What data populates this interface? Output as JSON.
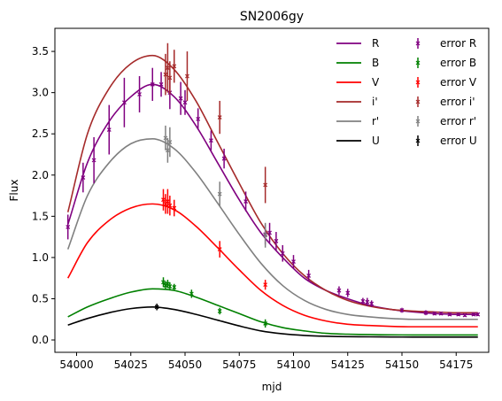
{
  "chart_data": {
    "type": "line",
    "title": "SN2006gy",
    "xlabel": "mjd",
    "ylabel": "Flux",
    "xlim": [
      53990,
      54190
    ],
    "ylim": [
      -0.15,
      3.78
    ],
    "xticks": [
      54000,
      54025,
      54050,
      54075,
      54100,
      54125,
      54150,
      54175
    ],
    "yticks": [
      0.0,
      0.5,
      1.0,
      1.5,
      2.0,
      2.5,
      3.0,
      3.5
    ],
    "grid": false,
    "legend_position": "top-right",
    "series": [
      {
        "name": "R",
        "color": "#800080",
        "x": [
          53996,
          54005,
          54015,
          54025,
          54035,
          54045,
          54055,
          54065,
          54075,
          54085,
          54095,
          54105,
          54115,
          54125,
          54135,
          54145,
          54155,
          54165,
          54175,
          54185
        ],
        "y": [
          1.4,
          2.15,
          2.65,
          2.95,
          3.1,
          2.95,
          2.6,
          2.15,
          1.7,
          1.3,
          1.0,
          0.75,
          0.6,
          0.5,
          0.42,
          0.37,
          0.34,
          0.32,
          0.31,
          0.31
        ]
      },
      {
        "name": "B",
        "color": "#008000",
        "x": [
          53996,
          54005,
          54015,
          54025,
          54035,
          54045,
          54055,
          54065,
          54075,
          54085,
          54095,
          54105,
          54115,
          54125,
          54135,
          54145,
          54155,
          54165,
          54175,
          54185
        ],
        "y": [
          0.28,
          0.4,
          0.5,
          0.58,
          0.62,
          0.6,
          0.52,
          0.42,
          0.32,
          0.22,
          0.15,
          0.11,
          0.08,
          0.07,
          0.065,
          0.062,
          0.06,
          0.06,
          0.06,
          0.06
        ]
      },
      {
        "name": "V",
        "color": "#ff0000",
        "x": [
          53996,
          54005,
          54015,
          54025,
          54035,
          54045,
          54055,
          54065,
          54075,
          54085,
          54095,
          54105,
          54115,
          54125,
          54135,
          54145,
          54155,
          54165,
          54175,
          54185
        ],
        "y": [
          0.75,
          1.18,
          1.45,
          1.6,
          1.65,
          1.58,
          1.38,
          1.12,
          0.85,
          0.6,
          0.42,
          0.3,
          0.23,
          0.19,
          0.175,
          0.165,
          0.16,
          0.16,
          0.16,
          0.16
        ]
      },
      {
        "name": "i'",
        "color": "#a52a2a",
        "x": [
          53996,
          54005,
          54015,
          54025,
          54035,
          54045,
          54055,
          54065,
          54075,
          54085,
          54095,
          54105,
          54115,
          54125,
          54135,
          54145,
          54155,
          54165,
          54175,
          54185
        ],
        "y": [
          1.55,
          2.5,
          3.05,
          3.35,
          3.45,
          3.28,
          2.9,
          2.4,
          1.9,
          1.42,
          1.05,
          0.78,
          0.6,
          0.48,
          0.41,
          0.37,
          0.35,
          0.34,
          0.33,
          0.33
        ]
      },
      {
        "name": "r'",
        "color": "#808080",
        "x": [
          53996,
          54005,
          54015,
          54025,
          54035,
          54045,
          54055,
          54065,
          54075,
          54085,
          54095,
          54105,
          54115,
          54125,
          54135,
          54145,
          54155,
          54165,
          54175,
          54185
        ],
        "y": [
          1.1,
          1.75,
          2.15,
          2.38,
          2.44,
          2.32,
          2.03,
          1.66,
          1.28,
          0.93,
          0.66,
          0.48,
          0.37,
          0.31,
          0.28,
          0.26,
          0.25,
          0.25,
          0.25,
          0.25
        ]
      },
      {
        "name": "U",
        "color": "#000000",
        "x": [
          53996,
          54005,
          54015,
          54025,
          54035,
          54045,
          54055,
          54065,
          54075,
          54085,
          54095,
          54105,
          54115,
          54125,
          54135,
          54145,
          54155,
          54165,
          54175,
          54185
        ],
        "y": [
          0.18,
          0.26,
          0.33,
          0.38,
          0.4,
          0.37,
          0.31,
          0.24,
          0.17,
          0.11,
          0.075,
          0.055,
          0.045,
          0.04,
          0.038,
          0.036,
          0.035,
          0.035,
          0.035,
          0.035
        ]
      }
    ],
    "error_series": [
      {
        "name": "error R",
        "color": "#800080",
        "marker": "x",
        "points": [
          {
            "x": 53996,
            "y": 1.37,
            "err": 0.15
          },
          {
            "x": 54003,
            "y": 1.97,
            "err": 0.18
          },
          {
            "x": 54008,
            "y": 2.18,
            "err": 0.28
          },
          {
            "x": 54015,
            "y": 2.55,
            "err": 0.3
          },
          {
            "x": 54022,
            "y": 2.88,
            "err": 0.3
          },
          {
            "x": 54029,
            "y": 2.98,
            "err": 0.22
          },
          {
            "x": 54035,
            "y": 3.1,
            "err": 0.2
          },
          {
            "x": 54039,
            "y": 3.1,
            "err": 0.15
          },
          {
            "x": 54043,
            "y": 3.0,
            "err": 0.2
          },
          {
            "x": 54048,
            "y": 2.93,
            "err": 0.2
          },
          {
            "x": 54050,
            "y": 2.88,
            "err": 0.15
          },
          {
            "x": 54056,
            "y": 2.68,
            "err": 0.13
          },
          {
            "x": 54062,
            "y": 2.42,
            "err": 0.12
          },
          {
            "x": 54068,
            "y": 2.2,
            "err": 0.12
          },
          {
            "x": 54078,
            "y": 1.68,
            "err": 0.12
          },
          {
            "x": 54087,
            "y": 1.28,
            "err": 0.12
          },
          {
            "x": 54089,
            "y": 1.3,
            "err": 0.12
          },
          {
            "x": 54092,
            "y": 1.2,
            "err": 0.11
          },
          {
            "x": 54095,
            "y": 1.05,
            "err": 0.1
          },
          {
            "x": 54100,
            "y": 0.95,
            "err": 0.08
          },
          {
            "x": 54107,
            "y": 0.78,
            "err": 0.07
          },
          {
            "x": 54121,
            "y": 0.6,
            "err": 0.05
          },
          {
            "x": 54125,
            "y": 0.57,
            "err": 0.05
          },
          {
            "x": 54132,
            "y": 0.47,
            "err": 0.04
          },
          {
            "x": 54134,
            "y": 0.46,
            "err": 0.05
          },
          {
            "x": 54136,
            "y": 0.44,
            "err": 0.04
          },
          {
            "x": 54150,
            "y": 0.36,
            "err": 0.03
          },
          {
            "x": 54161,
            "y": 0.33,
            "err": 0.03
          },
          {
            "x": 54165,
            "y": 0.32,
            "err": 0.02
          },
          {
            "x": 54168,
            "y": 0.32,
            "err": 0.02
          },
          {
            "x": 54172,
            "y": 0.31,
            "err": 0.02
          },
          {
            "x": 54176,
            "y": 0.31,
            "err": 0.02
          },
          {
            "x": 54179,
            "y": 0.3,
            "err": 0.02
          },
          {
            "x": 54183,
            "y": 0.31,
            "err": 0.02
          },
          {
            "x": 54185,
            "y": 0.31,
            "err": 0.02
          }
        ]
      },
      {
        "name": "error B",
        "color": "#008000",
        "marker": "x",
        "points": [
          {
            "x": 54040,
            "y": 0.7,
            "err": 0.06
          },
          {
            "x": 54041,
            "y": 0.66,
            "err": 0.05
          },
          {
            "x": 54042,
            "y": 0.68,
            "err": 0.05
          },
          {
            "x": 54043,
            "y": 0.65,
            "err": 0.05
          },
          {
            "x": 54045,
            "y": 0.64,
            "err": 0.04
          },
          {
            "x": 54053,
            "y": 0.56,
            "err": 0.05
          },
          {
            "x": 54066,
            "y": 0.35,
            "err": 0.04
          },
          {
            "x": 54087,
            "y": 0.2,
            "err": 0.05
          }
        ]
      },
      {
        "name": "error V",
        "color": "#ff0000",
        "marker": "x",
        "points": [
          {
            "x": 54040,
            "y": 1.7,
            "err": 0.13
          },
          {
            "x": 54041,
            "y": 1.65,
            "err": 0.12
          },
          {
            "x": 54042,
            "y": 1.68,
            "err": 0.15
          },
          {
            "x": 54043,
            "y": 1.63,
            "err": 0.12
          },
          {
            "x": 54045,
            "y": 1.6,
            "err": 0.1
          },
          {
            "x": 54066,
            "y": 1.1,
            "err": 0.1
          },
          {
            "x": 54087,
            "y": 0.67,
            "err": 0.06
          }
        ]
      },
      {
        "name": "error i'",
        "color": "#a52a2a",
        "marker": "x",
        "points": [
          {
            "x": 54041,
            "y": 3.22,
            "err": 0.25
          },
          {
            "x": 54042,
            "y": 3.3,
            "err": 0.3
          },
          {
            "x": 54043,
            "y": 3.18,
            "err": 0.2
          },
          {
            "x": 54045,
            "y": 3.32,
            "err": 0.2
          },
          {
            "x": 54051,
            "y": 3.2,
            "err": 0.3
          },
          {
            "x": 54066,
            "y": 2.7,
            "err": 0.2
          },
          {
            "x": 54087,
            "y": 1.88,
            "err": 0.22
          }
        ]
      },
      {
        "name": "error r'",
        "color": "#808080",
        "marker": "x",
        "points": [
          {
            "x": 54041,
            "y": 2.45,
            "err": 0.15
          },
          {
            "x": 54042,
            "y": 2.3,
            "err": 0.15
          },
          {
            "x": 54043,
            "y": 2.4,
            "err": 0.18
          },
          {
            "x": 54066,
            "y": 1.77,
            "err": 0.15
          },
          {
            "x": 54087,
            "y": 1.27,
            "err": 0.15
          }
        ]
      },
      {
        "name": "error U",
        "color": "#000000",
        "marker": "x",
        "points": [
          {
            "x": 54037,
            "y": 0.4,
            "err": 0.04
          }
        ]
      }
    ]
  }
}
